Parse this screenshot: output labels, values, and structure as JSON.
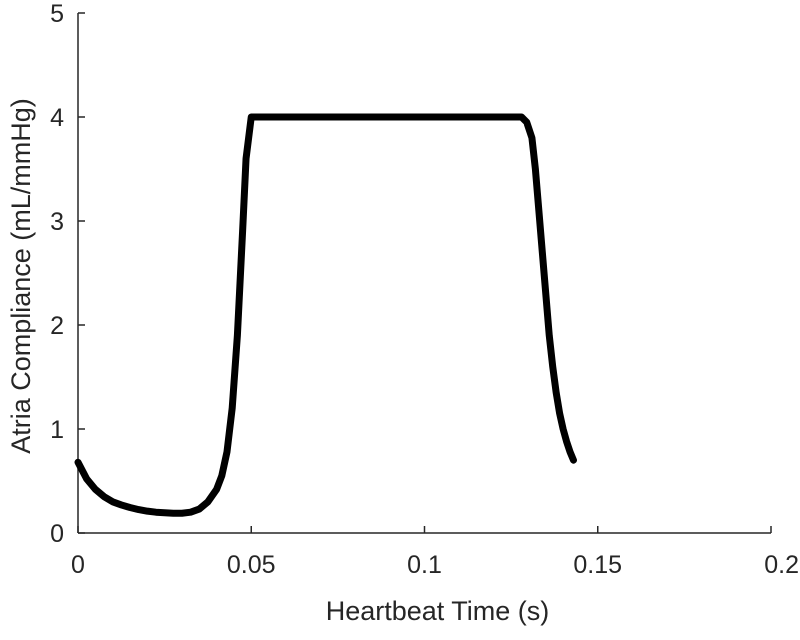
{
  "chart_data": {
    "type": "line",
    "title": "",
    "xlabel": "Heartbeat Time (s)",
    "ylabel": "Atria Compliance (mL/mmHg)",
    "xlim": [
      0,
      0.2
    ],
    "ylim": [
      0,
      5
    ],
    "xticks": [
      0,
      0.05,
      0.1,
      0.15,
      0.2
    ],
    "xtick_labels": [
      "0",
      "0.05",
      "0.1",
      "0.15",
      "0.2"
    ],
    "yticks": [
      0,
      1,
      2,
      3,
      4,
      5
    ],
    "ytick_labels": [
      "0",
      "1",
      "2",
      "3",
      "4",
      "5"
    ],
    "grid": false,
    "legend": "none",
    "series": [
      {
        "color": "#000000",
        "x": [
          0,
          0.0025,
          0.005,
          0.0075,
          0.01,
          0.0125,
          0.015,
          0.0175,
          0.02,
          0.0225,
          0.025,
          0.0275,
          0.03,
          0.0325,
          0.035,
          0.0375,
          0.04,
          0.0415,
          0.043,
          0.0445,
          0.046,
          0.0475,
          0.0485,
          0.05,
          0.055,
          0.07,
          0.09,
          0.11,
          0.125,
          0.128,
          0.1295,
          0.131,
          0.132,
          0.133,
          0.134,
          0.135,
          0.136,
          0.137,
          0.138,
          0.139,
          0.14,
          0.141,
          0.142,
          0.143
        ],
        "y": [
          0.68,
          0.52,
          0.42,
          0.35,
          0.3,
          0.27,
          0.245,
          0.225,
          0.21,
          0.2,
          0.195,
          0.19,
          0.19,
          0.2,
          0.23,
          0.3,
          0.42,
          0.55,
          0.78,
          1.2,
          1.9,
          2.9,
          3.6,
          4.0,
          4.0,
          4.0,
          4.0,
          4.0,
          4.0,
          4.0,
          3.95,
          3.8,
          3.5,
          3.1,
          2.7,
          2.3,
          1.9,
          1.6,
          1.35,
          1.15,
          1.0,
          0.88,
          0.78,
          0.7
        ]
      }
    ]
  }
}
